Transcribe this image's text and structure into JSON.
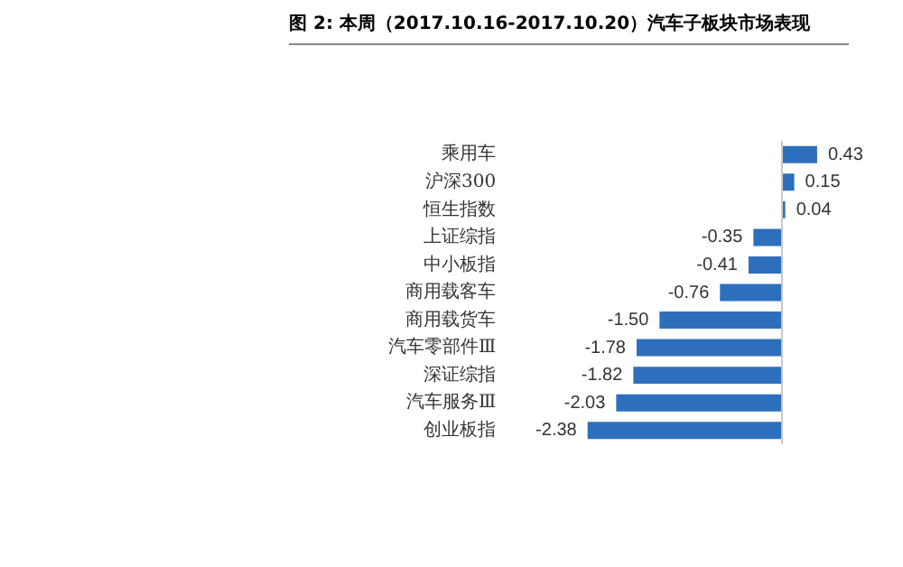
{
  "chart_data": {
    "type": "bar",
    "orientation": "horizontal",
    "title": "图 2: 本周（2017.10.16-2017.10.20）汽车子板块市场表现",
    "categories": [
      "乘用车",
      "沪深300",
      "恒生指数",
      "上证综指",
      "中小板指",
      "商用载客车",
      "商用载货车",
      "汽车零部件Ⅲ",
      "深证综指",
      "汽车服务Ⅲ",
      "创业板指"
    ],
    "values": [
      0.43,
      0.15,
      0.04,
      -0.35,
      -0.41,
      -0.76,
      -1.5,
      -1.78,
      -1.82,
      -2.03,
      -2.38
    ],
    "value_labels": [
      "0.43",
      "0.15",
      "0.04",
      "-0.35",
      "-0.41",
      "-0.76",
      "-1.50",
      "-1.78",
      "-1.82",
      "-2.03",
      "-2.38"
    ],
    "color": "#2e6fbd",
    "legend": false
  }
}
